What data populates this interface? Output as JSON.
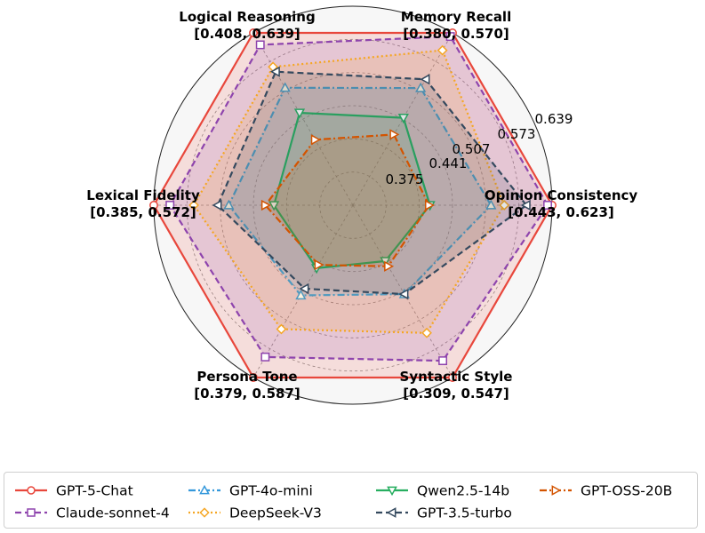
{
  "chart_data": {
    "type": "radar",
    "axes": [
      {
        "name": "Opinion Consistency",
        "range_label": "[0.443, 0.623]",
        "min": 0.443,
        "max": 0.623
      },
      {
        "name": "Memory Recall",
        "range_label": "[0.380, 0.570]",
        "min": 0.38,
        "max": 0.57
      },
      {
        "name": "Logical Reasoning",
        "range_label": "[0.408, 0.639]",
        "min": 0.408,
        "max": 0.639
      },
      {
        "name": "Lexical Fidelity",
        "range_label": "[0.385, 0.572]",
        "min": 0.385,
        "max": 0.572
      },
      {
        "name": "Persona Tone",
        "range_label": "[0.379, 0.587]",
        "min": 0.379,
        "max": 0.587
      },
      {
        "name": "Syntactic Style",
        "range_label": "[0.309, 0.547]",
        "min": 0.309,
        "max": 0.547
      }
    ],
    "ring_labels": [
      "0.375",
      "0.441",
      "0.507",
      "0.573",
      "0.639"
    ],
    "series": [
      {
        "name": "GPT-5-Chat",
        "color": "#e8473c",
        "marker": "circle",
        "dash": "solid",
        "values": [
          0.623,
          0.57,
          0.639,
          0.572,
          0.587,
          0.547
        ]
      },
      {
        "name": "Claude-sonnet-4",
        "color": "#8e44ad",
        "marker": "square",
        "dash": "dashed",
        "values": [
          0.618,
          0.565,
          0.619,
          0.553,
          0.556,
          0.518
        ]
      },
      {
        "name": "GPT-4o-mini",
        "color": "#3498db",
        "marker": "triangle-up",
        "dash": "dashdot",
        "values": [
          0.554,
          0.494,
          0.547,
          0.484,
          0.463,
          0.403
        ]
      },
      {
        "name": "DeepSeek-V3",
        "color": "#f5a623",
        "marker": "diamond",
        "dash": "dotted",
        "values": [
          0.569,
          0.546,
          0.582,
          0.525,
          0.514,
          0.47
        ]
      },
      {
        "name": "Qwen2.5-14b",
        "color": "#27ae60",
        "marker": "triangle-down",
        "dash": "solid",
        "values": [
          0.485,
          0.453,
          0.505,
          0.431,
          0.422,
          0.346
        ]
      },
      {
        "name": "GPT-3.5-turbo",
        "color": "#34495e",
        "marker": "triangle-left",
        "dash": "dashed",
        "values": [
          0.594,
          0.506,
          0.574,
          0.497,
          0.453,
          0.403
        ]
      },
      {
        "name": "GPT-OSS-20B",
        "color": "#d35400",
        "marker": "triangle-right",
        "dash": "dashdot",
        "values": [
          0.484,
          0.43,
          0.46,
          0.441,
          0.417,
          0.355
        ]
      }
    ]
  },
  "legend": {
    "columns": [
      [
        "GPT-5-Chat",
        "Claude-sonnet-4"
      ],
      [
        "GPT-4o-mini",
        "DeepSeek-V3"
      ],
      [
        "Qwen2.5-14b",
        "GPT-3.5-turbo"
      ],
      [
        "GPT-OSS-20B"
      ]
    ]
  }
}
